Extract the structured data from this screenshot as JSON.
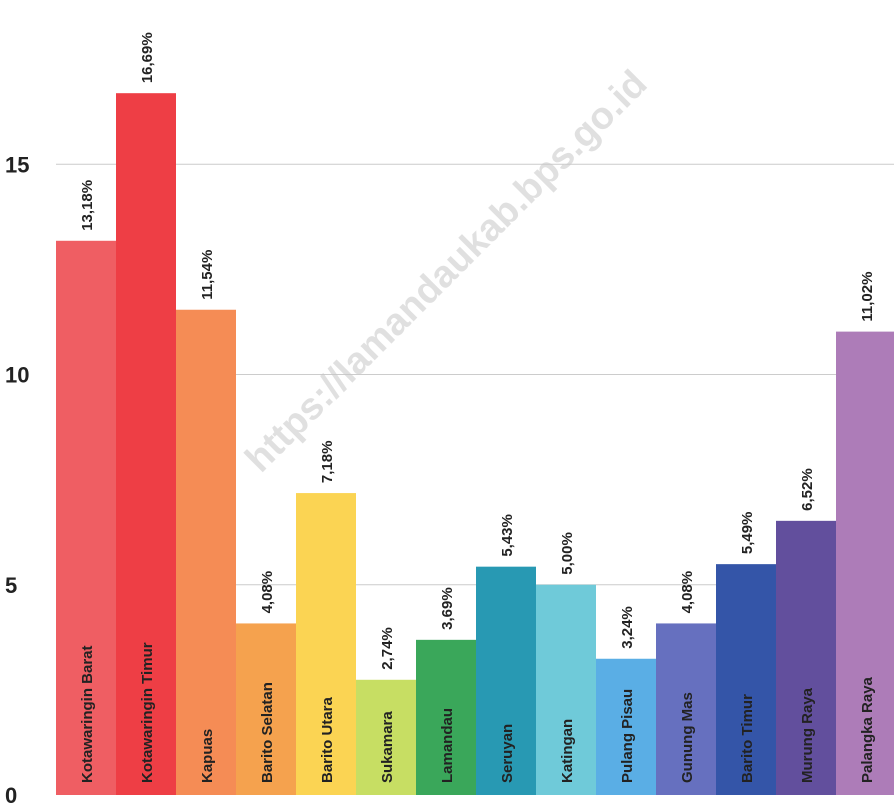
{
  "chart_data": {
    "type": "bar",
    "categories": [
      "Kotawaringin Barat",
      "Kotawaringin Timur",
      "Kapuas",
      "Barito Selatan",
      "Barito Utara",
      "Sukamara",
      "Lamandau",
      "Seruyan",
      "Katingan",
      "Pulang Pisau",
      "Gunung Mas",
      "Barito Timur",
      "Murung Raya",
      "Palangka Raya"
    ],
    "values": [
      13.18,
      16.69,
      11.54,
      4.08,
      7.18,
      2.74,
      3.69,
      5.43,
      5.0,
      3.24,
      4.08,
      5.49,
      6.52,
      11.02
    ],
    "value_labels": [
      "13,18%",
      "16,69%",
      "11,54%",
      "4,08%",
      "7,18%",
      "2,74%",
      "3,69%",
      "5,43%",
      "5,00%",
      "3,24%",
      "4,08%",
      "5,49%",
      "6,52%",
      "11,02%"
    ],
    "colors": [
      "#ef5e63",
      "#ee3e45",
      "#f58c55",
      "#f5a24e",
      "#fbd453",
      "#c7de63",
      "#3aa75a",
      "#2899b3",
      "#6fcad9",
      "#5aaee5",
      "#6670bf",
      "#3455a8",
      "#624f9d",
      "#ad7cb8"
    ],
    "yticks": [
      0,
      5,
      10,
      15
    ],
    "ylim": [
      0,
      17.5
    ],
    "grid": true,
    "title": "",
    "xlabel": "",
    "ylabel": ""
  },
  "watermark": "https://lamandaukab.bps.go.id"
}
